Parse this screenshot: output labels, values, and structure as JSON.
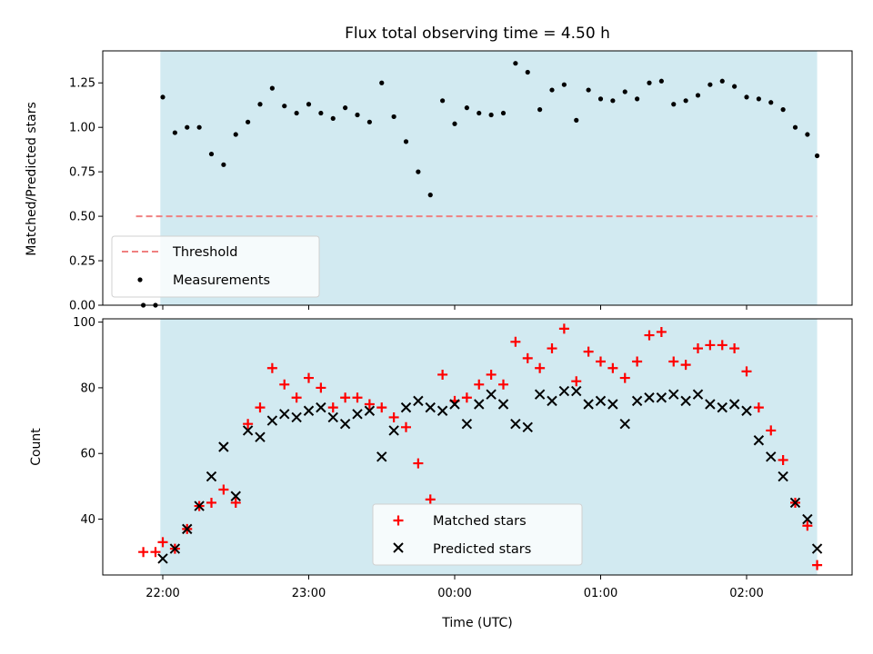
{
  "chart_data": [
    {
      "type": "scatter",
      "title": "Flux total observing time = 4.50 h",
      "xlabel": "",
      "ylabel": "Matched/Predicted stars",
      "ylim": [
        0,
        1.43
      ],
      "yticks": [
        "0.00",
        "0.25",
        "0.50",
        "0.75",
        "1.00",
        "1.25"
      ],
      "shaded_span": {
        "from": "21:59",
        "to": "02:29",
        "color": "#add8e6"
      },
      "threshold": {
        "name": "Threshold",
        "value": 0.5,
        "from": "21:49",
        "to": "02:29",
        "color": "#f08080"
      },
      "legend_loc": "lower-left",
      "series": [
        {
          "name": "Measurements",
          "color": "#000000",
          "points": [
            [
              "21:52",
              0.0
            ],
            [
              "21:57",
              0.0
            ],
            [
              "22:00",
              1.17
            ],
            [
              "22:05",
              0.97
            ],
            [
              "22:10",
              1.0
            ],
            [
              "22:15",
              1.0
            ],
            [
              "22:20",
              0.85
            ],
            [
              "22:25",
              0.79
            ],
            [
              "22:30",
              0.96
            ],
            [
              "22:35",
              1.03
            ],
            [
              "22:40",
              1.13
            ],
            [
              "22:45",
              1.22
            ],
            [
              "22:50",
              1.12
            ],
            [
              "22:55",
              1.08
            ],
            [
              "23:00",
              1.13
            ],
            [
              "23:05",
              1.08
            ],
            [
              "23:10",
              1.05
            ],
            [
              "23:15",
              1.11
            ],
            [
              "23:20",
              1.07
            ],
            [
              "23:25",
              1.03
            ],
            [
              "23:30",
              1.25
            ],
            [
              "23:35",
              1.06
            ],
            [
              "23:40",
              0.92
            ],
            [
              "23:45",
              0.75
            ],
            [
              "23:50",
              0.62
            ],
            [
              "23:55",
              1.15
            ],
            [
              "00:00",
              1.02
            ],
            [
              "00:05",
              1.11
            ],
            [
              "00:10",
              1.08
            ],
            [
              "00:15",
              1.07
            ],
            [
              "00:20",
              1.08
            ],
            [
              "00:25",
              1.36
            ],
            [
              "00:30",
              1.31
            ],
            [
              "00:35",
              1.1
            ],
            [
              "00:40",
              1.21
            ],
            [
              "00:45",
              1.24
            ],
            [
              "00:50",
              1.04
            ],
            [
              "00:55",
              1.21
            ],
            [
              "01:00",
              1.16
            ],
            [
              "01:05",
              1.15
            ],
            [
              "01:10",
              1.2
            ],
            [
              "01:15",
              1.16
            ],
            [
              "01:20",
              1.25
            ],
            [
              "01:25",
              1.26
            ],
            [
              "01:30",
              1.13
            ],
            [
              "01:35",
              1.15
            ],
            [
              "01:40",
              1.18
            ],
            [
              "01:45",
              1.24
            ],
            [
              "01:50",
              1.26
            ],
            [
              "01:55",
              1.23
            ],
            [
              "02:00",
              1.17
            ],
            [
              "02:05",
              1.16
            ],
            [
              "02:10",
              1.14
            ],
            [
              "02:15",
              1.1
            ],
            [
              "02:20",
              1.0
            ],
            [
              "02:25",
              0.96
            ],
            [
              "02:29",
              0.84
            ]
          ]
        }
      ]
    },
    {
      "type": "scatter",
      "title": "",
      "xlabel": "Time (UTC)",
      "ylabel": "Count",
      "ylim": [
        23,
        101
      ],
      "yticks": [
        "40",
        "60",
        "80",
        "100"
      ],
      "xticks": [
        "22:00",
        "23:00",
        "00:00",
        "01:00",
        "02:00"
      ],
      "shaded_span": {
        "from": "21:59",
        "to": "02:29",
        "color": "#add8e6"
      },
      "legend_loc": "lower-center",
      "series": [
        {
          "name": "Matched stars",
          "marker": "+",
          "color": "#ff0000",
          "points": [
            [
              "21:52",
              30
            ],
            [
              "21:57",
              30
            ],
            [
              "22:00",
              33
            ],
            [
              "22:05",
              31
            ],
            [
              "22:10",
              37
            ],
            [
              "22:15",
              44
            ],
            [
              "22:20",
              45
            ],
            [
              "22:25",
              49
            ],
            [
              "22:30",
              45
            ],
            [
              "22:35",
              69
            ],
            [
              "22:40",
              74
            ],
            [
              "22:45",
              86
            ],
            [
              "22:50",
              81
            ],
            [
              "22:55",
              77
            ],
            [
              "23:00",
              83
            ],
            [
              "23:05",
              80
            ],
            [
              "23:10",
              74
            ],
            [
              "23:15",
              77
            ],
            [
              "23:20",
              77
            ],
            [
              "23:25",
              75
            ],
            [
              "23:30",
              74
            ],
            [
              "23:35",
              71
            ],
            [
              "23:40",
              68
            ],
            [
              "23:45",
              57
            ],
            [
              "23:50",
              46
            ],
            [
              "23:55",
              84
            ],
            [
              "00:00",
              76
            ],
            [
              "00:05",
              77
            ],
            [
              "00:10",
              81
            ],
            [
              "00:15",
              84
            ],
            [
              "00:20",
              81
            ],
            [
              "00:25",
              94
            ],
            [
              "00:30",
              89
            ],
            [
              "00:35",
              86
            ],
            [
              "00:40",
              92
            ],
            [
              "00:45",
              98
            ],
            [
              "00:50",
              82
            ],
            [
              "00:55",
              91
            ],
            [
              "01:00",
              88
            ],
            [
              "01:05",
              86
            ],
            [
              "01:10",
              83
            ],
            [
              "01:15",
              88
            ],
            [
              "01:20",
              96
            ],
            [
              "01:25",
              97
            ],
            [
              "01:30",
              88
            ],
            [
              "01:35",
              87
            ],
            [
              "01:40",
              92
            ],
            [
              "01:45",
              93
            ],
            [
              "01:50",
              93
            ],
            [
              "01:55",
              92
            ],
            [
              "02:00",
              85
            ],
            [
              "02:05",
              74
            ],
            [
              "02:10",
              67
            ],
            [
              "02:15",
              58
            ],
            [
              "02:20",
              45
            ],
            [
              "02:25",
              38
            ],
            [
              "02:29",
              26
            ]
          ]
        },
        {
          "name": "Predicted stars",
          "marker": "x",
          "color": "#000000",
          "points": [
            [
              "22:00",
              28
            ],
            [
              "22:05",
              31
            ],
            [
              "22:10",
              37
            ],
            [
              "22:15",
              44
            ],
            [
              "22:20",
              53
            ],
            [
              "22:25",
              62
            ],
            [
              "22:30",
              47
            ],
            [
              "22:35",
              67
            ],
            [
              "22:40",
              65
            ],
            [
              "22:45",
              70
            ],
            [
              "22:50",
              72
            ],
            [
              "22:55",
              71
            ],
            [
              "23:00",
              73
            ],
            [
              "23:05",
              74
            ],
            [
              "23:10",
              71
            ],
            [
              "23:15",
              69
            ],
            [
              "23:20",
              72
            ],
            [
              "23:25",
              73
            ],
            [
              "23:30",
              59
            ],
            [
              "23:35",
              67
            ],
            [
              "23:40",
              74
            ],
            [
              "23:45",
              76
            ],
            [
              "23:50",
              74
            ],
            [
              "23:55",
              73
            ],
            [
              "00:00",
              75
            ],
            [
              "00:05",
              69
            ],
            [
              "00:10",
              75
            ],
            [
              "00:15",
              78
            ],
            [
              "00:20",
              75
            ],
            [
              "00:25",
              69
            ],
            [
              "00:30",
              68
            ],
            [
              "00:35",
              78
            ],
            [
              "00:40",
              76
            ],
            [
              "00:45",
              79
            ],
            [
              "00:50",
              79
            ],
            [
              "00:55",
              75
            ],
            [
              "01:00",
              76
            ],
            [
              "01:05",
              75
            ],
            [
              "01:10",
              69
            ],
            [
              "01:15",
              76
            ],
            [
              "01:20",
              77
            ],
            [
              "01:25",
              77
            ],
            [
              "01:30",
              78
            ],
            [
              "01:35",
              76
            ],
            [
              "01:40",
              78
            ],
            [
              "01:45",
              75
            ],
            [
              "01:50",
              74
            ],
            [
              "01:55",
              75
            ],
            [
              "02:00",
              73
            ],
            [
              "02:05",
              64
            ],
            [
              "02:10",
              59
            ],
            [
              "02:15",
              53
            ],
            [
              "02:20",
              45
            ],
            [
              "02:25",
              40
            ],
            [
              "02:29",
              31
            ]
          ]
        }
      ]
    }
  ]
}
